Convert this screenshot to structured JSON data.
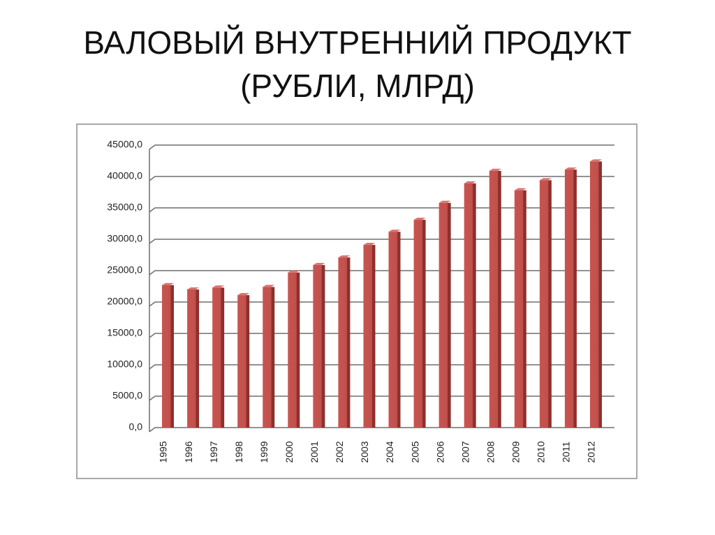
{
  "chart_data": {
    "type": "bar",
    "title": "ВАЛОВЫЙ ВНУТРЕННИЙ ПРОДУКТ (РУБЛИ, МЛРД)",
    "categories": [
      "1995",
      "1996",
      "1997",
      "1998",
      "1999",
      "2000",
      "2001",
      "2002",
      "2003",
      "2004",
      "2005",
      "2006",
      "2007",
      "2008",
      "2009",
      "2010",
      "2011",
      "2012"
    ],
    "values": [
      22700,
      22000,
      22300,
      21100,
      22400,
      24700,
      25900,
      27100,
      29100,
      31200,
      33100,
      35800,
      38900,
      40900,
      37800,
      39400,
      41100,
      42400
    ],
    "color": "#c0504d",
    "ylim": [
      0,
      45000
    ],
    "yticks": [
      {
        "value": 0,
        "label": "0,0"
      },
      {
        "value": 5000,
        "label": "5000,0"
      },
      {
        "value": 10000,
        "label": "10000,0"
      },
      {
        "value": 15000,
        "label": "15000,0"
      },
      {
        "value": 20000,
        "label": "20000,0"
      },
      {
        "value": 25000,
        "label": "25000,0"
      },
      {
        "value": 30000,
        "label": "30000,0"
      },
      {
        "value": 35000,
        "label": "35000,0"
      },
      {
        "value": 40000,
        "label": "40000,0"
      },
      {
        "value": 45000,
        "label": "45000,0"
      }
    ],
    "grid": true
  }
}
